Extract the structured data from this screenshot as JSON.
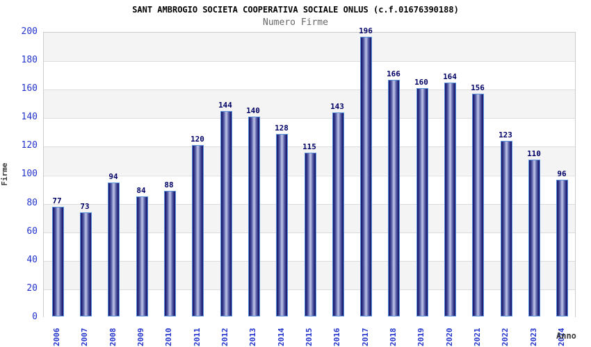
{
  "chart": {
    "title": "SANT AMBROGIO SOCIETA COOPERATIVA SOCIALE ONLUS (c.f.01676390188)",
    "subtitle": "Numero Firme",
    "ylabel": "Firme",
    "xlabel": "Anno"
  },
  "chart_data": {
    "type": "bar",
    "title": "SANT AMBROGIO SOCIETA COOPERATIVA SOCIALE ONLUS (c.f.01676390188)",
    "subtitle": "Numero Firme",
    "xlabel": "Anno",
    "ylabel": "Firme",
    "categories": [
      "2006",
      "2007",
      "2008",
      "2009",
      "2010",
      "2011",
      "2012",
      "2013",
      "2014",
      "2015",
      "2016",
      "2017",
      "2018",
      "2019",
      "2020",
      "2021",
      "2022",
      "2023",
      "2024"
    ],
    "values": [
      77,
      73,
      94,
      84,
      88,
      120,
      144,
      140,
      128,
      115,
      143,
      196,
      166,
      160,
      164,
      156,
      123,
      110,
      96
    ],
    "ylim": [
      0,
      200
    ],
    "ytick_step": 20,
    "grid": true,
    "legend_position": "none",
    "band_fill": "alternating-horizontal",
    "bar_labels": "above",
    "colors": {
      "bar_edge_dark": "#191a70",
      "bar_mid": "#5a61a8",
      "bar_center_light": "#b7bce2",
      "bar_border": "#5b93dd",
      "tick_text": "#2233cc",
      "value_text": "#000066",
      "band_gray": "#f4f4f4",
      "grid_line": "#dcdcdc",
      "plot_border": "#cccccc",
      "title_text": "#000000",
      "subtitle_text": "#666666",
      "axis_title_text": "#3a3a3a"
    }
  }
}
